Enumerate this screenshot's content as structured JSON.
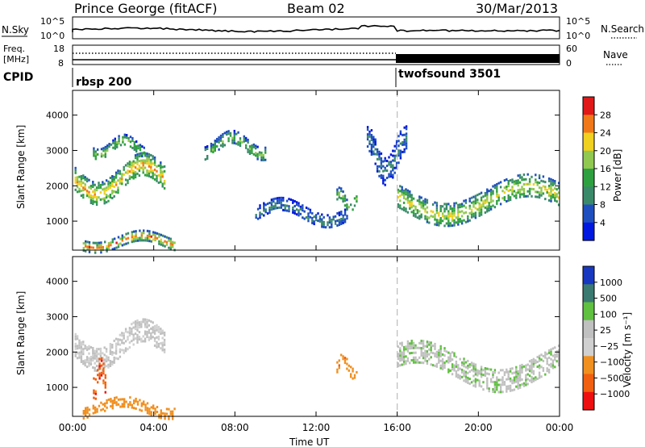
{
  "header": {
    "title": "Prince George (fitACF)",
    "beam": "Beam 02",
    "date": "30/Mar/2013"
  },
  "nsky_panel": {
    "left_label": "N.Sky",
    "right_label": "N.Search",
    "left_ticks": [
      "10^5",
      "10^0"
    ],
    "right_ticks": [
      "10^5",
      "10^0"
    ]
  },
  "freq_panel": {
    "label_top": "Freq.",
    "label_bottom": "[MHz]",
    "left_ticks": [
      "18",
      "8"
    ],
    "right_label": "Nave",
    "right_ticks": [
      "60",
      "0"
    ]
  },
  "cpid_panel": {
    "label": "CPID",
    "modes": [
      "rbsp 200",
      "twofsound 3501"
    ]
  },
  "time_axis": {
    "label": "Time UT",
    "ticks": [
      "00:00",
      "04:00",
      "08:00",
      "12:00",
      "16:00",
      "20:00",
      "00:00"
    ]
  },
  "colors": {
    "power_scale": [
      "#0018e0",
      "#1f4fbf",
      "#3a8a6a",
      "#2fa040",
      "#90c850",
      "#f0d020",
      "#f07818",
      "#e01818"
    ],
    "velocity_scale": [
      "#ee1010",
      "#f06010",
      "#f09020",
      "#d0d0d0",
      "#c0c0c0",
      "#60c040",
      "#3a7a70",
      "#1838c0"
    ],
    "mode_change_line": "#bbbbbb"
  },
  "chart_data": [
    {
      "type": "heatmap",
      "title": "",
      "xlabel": "Time UT",
      "ylabel": "Slant Range [km]",
      "xlim_hours": [
        0,
        24
      ],
      "ylim_km": [
        180,
        4700
      ],
      "y_ticks": [
        1000,
        2000,
        3000,
        4000
      ],
      "colorbar": {
        "label": "Power [dB]",
        "ticks": [
          "4",
          "8",
          "12",
          "16",
          "20",
          "24",
          "28"
        ]
      },
      "mode_change_hour": 16,
      "echo_regions": [
        {
          "t": [
            0.1,
            4.5
          ],
          "range_km": [
            1600,
            2800
          ],
          "peak_db": 26
        },
        {
          "t": [
            1.0,
            3.5
          ],
          "range_km": [
            2800,
            3400
          ],
          "peak_db": 18
        },
        {
          "t": [
            6.5,
            9.5
          ],
          "range_km": [
            2800,
            3500
          ],
          "peak_db": 16
        },
        {
          "t": [
            9.0,
            13.5
          ],
          "range_km": [
            900,
            1600
          ],
          "peak_db": 8
        },
        {
          "t": [
            13.0,
            14.0
          ],
          "range_km": [
            1300,
            1900
          ],
          "peak_db": 20
        },
        {
          "t": [
            14.5,
            16.5
          ],
          "range_km": [
            2200,
            3600
          ],
          "peak_db": 8
        },
        {
          "t": [
            16.0,
            24.0
          ],
          "range_km": [
            1000,
            2200
          ],
          "peak_db": 22
        },
        {
          "t": [
            0.5,
            5.0
          ],
          "range_km": [
            200,
            700
          ],
          "peak_db": 28
        }
      ]
    },
    {
      "type": "heatmap",
      "title": "",
      "xlabel": "Time UT",
      "ylabel": "Slant Range [km]",
      "xlim_hours": [
        0,
        24
      ],
      "ylim_km": [
        180,
        4700
      ],
      "y_ticks": [
        1000,
        2000,
        3000,
        4000
      ],
      "colorbar": {
        "label": "Velocity [m s⁻¹]",
        "ticks": [
          "1000",
          "500",
          "100",
          "25",
          "−25",
          "−100",
          "−500",
          "−1000"
        ]
      },
      "mode_change_hour": 16,
      "echo_regions": [
        {
          "t": [
            0.1,
            4.5
          ],
          "range_km": [
            1600,
            2800
          ],
          "velocity": -20
        },
        {
          "t": [
            1.0,
            1.6
          ],
          "range_km": [
            800,
            1800
          ],
          "velocity": -800
        },
        {
          "t": [
            0.5,
            5.0
          ],
          "range_km": [
            200,
            700
          ],
          "velocity": -300
        },
        {
          "t": [
            13.0,
            14.0
          ],
          "range_km": [
            1300,
            1900
          ],
          "velocity": -400
        },
        {
          "t": [
            16.0,
            24.0
          ],
          "range_km": [
            1000,
            2200
          ],
          "velocity": 10
        }
      ]
    }
  ]
}
